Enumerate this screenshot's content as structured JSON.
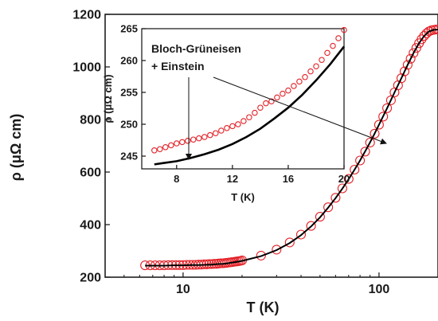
{
  "chart_data": [
    {
      "id": "main",
      "type": "scatter",
      "xlabel": "T (K)",
      "ylabel": "ρ (μΩ cm)",
      "xscale": "log",
      "xlim": [
        4.0,
        200
      ],
      "ylim": [
        200,
        1200
      ],
      "xticks": [
        10,
        100
      ],
      "xtick_labels": [
        "10",
        "100"
      ],
      "yticks": [
        200,
        400,
        600,
        800,
        1000,
        1200
      ],
      "ytick_labels": [
        "200",
        "400",
        "600",
        "800",
        "1000",
        "1200"
      ],
      "series": [
        {
          "kind": "markers",
          "color": "#e32026",
          "x": [
            6.4,
            6.8,
            7.2,
            7.6,
            8.0,
            8.4,
            8.8,
            9.2,
            9.6,
            10.0,
            10.4,
            10.8,
            11.2,
            11.6,
            12.0,
            12.4,
            12.8,
            13.2,
            13.6,
            14.0,
            14.4,
            14.8,
            15.2,
            15.6,
            16.0,
            16.4,
            16.8,
            17.2,
            17.6,
            18.0,
            18.4,
            18.8,
            19.2,
            19.6,
            20,
            25,
            30,
            35,
            40,
            45,
            50,
            55,
            60,
            65,
            70,
            75,
            80,
            85,
            90,
            95,
            100,
            105,
            110,
            115,
            120,
            125,
            130,
            135,
            140,
            145,
            150,
            155,
            160,
            165,
            170,
            175,
            180,
            185,
            190,
            195,
            200
          ],
          "y": [
            245,
            245,
            245,
            245,
            245,
            246,
            246,
            246,
            246,
            246,
            247,
            247,
            247,
            247,
            248,
            248,
            249,
            249,
            250,
            250,
            251,
            251,
            252,
            253,
            253,
            254,
            255,
            256,
            257,
            258,
            259,
            260,
            261,
            262,
            264,
            282,
            305,
            332,
            362,
            395,
            430,
            466,
            502,
            538,
            574,
            609,
            644,
            678,
            712,
            746,
            780,
            811,
            843,
            873,
            903,
            930,
            957,
            983,
            1008,
            1031,
            1053,
            1072,
            1090,
            1105,
            1118,
            1128,
            1135,
            1139,
            1141,
            1142,
            1142
          ]
        },
        {
          "kind": "line",
          "color": "#000000",
          "x": [
            6.4,
            7,
            8,
            9,
            10,
            11,
            12,
            13,
            14,
            15,
            16,
            17,
            18,
            19,
            20,
            25,
            30,
            35,
            40,
            45,
            50,
            55,
            60,
            65,
            70,
            75,
            80,
            85,
            90,
            95,
            100,
            110,
            120,
            130,
            140,
            150,
            160,
            170,
            180,
            190,
            200
          ],
          "y": [
            244,
            244,
            244,
            245,
            245,
            246,
            246,
            247,
            248,
            250,
            251,
            253,
            256,
            259,
            262,
            280,
            303,
            330,
            360,
            393,
            428,
            465,
            501,
            537,
            573,
            609,
            644,
            679,
            713,
            747,
            780,
            843,
            903,
            957,
            1008,
            1053,
            1090,
            1118,
            1135,
            1141,
            1142
          ]
        }
      ]
    },
    {
      "id": "inset",
      "type": "scatter",
      "xlabel": "T (K)",
      "ylabel": "ρ (μΩ cm)",
      "xlim": [
        5.5,
        20
      ],
      "ylim": [
        243,
        265
      ],
      "xticks": [
        8,
        12,
        16,
        20
      ],
      "xtick_labels": [
        "8",
        "12",
        "16",
        "20"
      ],
      "yticks": [
        245,
        250,
        255,
        260,
        265
      ],
      "ytick_labels": [
        "245",
        "250",
        "255",
        "260",
        "265"
      ],
      "annotation": [
        "Bloch-Grüneisen",
        "+ Einstein"
      ],
      "series": [
        {
          "kind": "markers",
          "color": "#e32026",
          "x": [
            6.4,
            6.8,
            7.2,
            7.6,
            8.0,
            8.4,
            8.8,
            9.2,
            9.6,
            10.0,
            10.4,
            10.8,
            11.2,
            11.6,
            12.0,
            12.4,
            12.8,
            13.2,
            13.6,
            14.0,
            14.4,
            14.8,
            15.2,
            15.6,
            16.0,
            16.4,
            16.8,
            17.2,
            17.6,
            18.0,
            18.4,
            18.8,
            19.2,
            19.6,
            20.0
          ],
          "y": [
            245.9,
            246.1,
            246.4,
            246.7,
            247.0,
            247.2,
            247.4,
            247.6,
            247.8,
            248.0,
            248.3,
            248.6,
            249.0,
            249.4,
            249.7,
            250.0,
            250.5,
            251.1,
            251.8,
            252.6,
            253.3,
            253.6,
            254.2,
            254.8,
            255.3,
            256.0,
            256.7,
            257.4,
            258.3,
            259.1,
            260.1,
            261.2,
            262.3,
            263.5,
            264.8
          ]
        },
        {
          "kind": "line",
          "color": "#000000",
          "x": [
            6.4,
            7,
            8,
            9,
            10,
            11,
            12,
            13,
            14,
            15,
            16,
            17,
            18,
            19,
            20
          ],
          "y": [
            243.7,
            243.9,
            244.2,
            244.7,
            245.3,
            246.0,
            246.9,
            248.0,
            249.3,
            250.9,
            252.6,
            254.6,
            256.9,
            259.4,
            262.2
          ]
        }
      ]
    }
  ]
}
